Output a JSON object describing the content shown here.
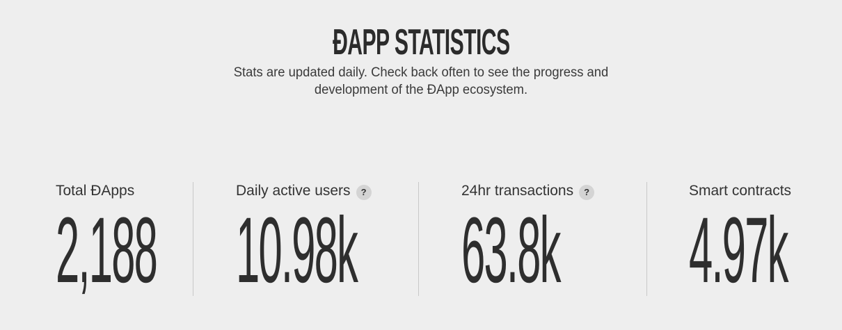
{
  "header": {
    "title": "ĐAPP STATISTICS",
    "subtitle_line1": "Stats are updated daily. Check back often to see the progress and",
    "subtitle_line2": "development of the ĐApp ecosystem."
  },
  "stats": [
    {
      "label": "Total ĐApps",
      "value": "2,188",
      "has_help": false
    },
    {
      "label": "Daily active users",
      "value": "10.98k",
      "has_help": true,
      "help_glyph": "?"
    },
    {
      "label": "24hr transactions",
      "value": "63.8k",
      "has_help": true,
      "help_glyph": "?"
    },
    {
      "label": "Smart contracts",
      "value": "4.97k",
      "has_help": false
    }
  ],
  "colors": {
    "background": "#eeeeee",
    "text": "#333333",
    "divider": "#c8c8c8",
    "help_badge": "#d4d4d4"
  },
  "icons": {
    "help": "question-mark-icon"
  }
}
